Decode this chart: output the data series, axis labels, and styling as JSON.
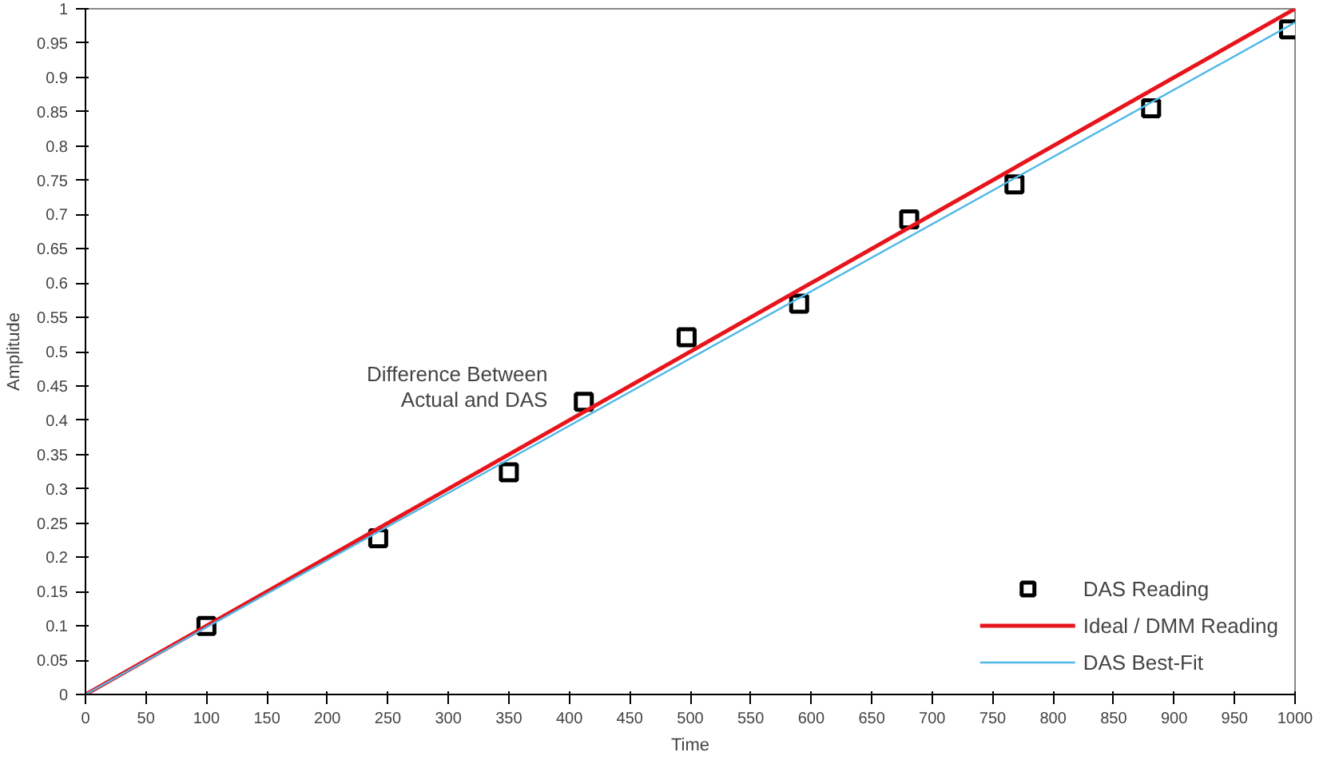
{
  "chart_data": {
    "type": "scatter",
    "xlabel": "Time",
    "ylabel": "Amplitude",
    "xlim": [
      0,
      1000
    ],
    "ylim": [
      0,
      1
    ],
    "xticks": [
      0,
      50,
      100,
      150,
      200,
      250,
      300,
      350,
      400,
      450,
      500,
      550,
      600,
      650,
      700,
      750,
      800,
      850,
      900,
      950,
      1000
    ],
    "yticks": [
      0,
      0.05,
      0.1,
      0.15,
      0.2,
      0.25,
      0.3,
      0.35,
      0.4,
      0.45,
      0.5,
      0.55,
      0.6,
      0.65,
      0.7,
      0.75,
      0.8,
      0.85,
      0.9,
      0.95,
      1
    ],
    "series": [
      {
        "name": "DAS Reading",
        "marker": "square",
        "color": "#000000",
        "x": [
          100,
          242,
          350,
          412,
          497,
          590,
          681,
          768,
          881,
          995
        ],
        "values": [
          0.1,
          0.228,
          0.324,
          0.427,
          0.521,
          0.57,
          0.693,
          0.744,
          0.855,
          0.97
        ]
      },
      {
        "name": "Ideal / DMM Reading",
        "type": "line",
        "color": "#e8141c",
        "x": [
          0,
          1000
        ],
        "values": [
          0,
          1
        ]
      },
      {
        "name": "DAS Best-Fit",
        "type": "line",
        "color": "#4fb8e8",
        "x": [
          0,
          1000
        ],
        "values": [
          0,
          0.98
        ]
      }
    ],
    "annotations": [
      {
        "text": "Difference Between\nActual and DAS",
        "x": 412,
        "y": 0.427
      }
    ],
    "legend": "bottom right",
    "grid": false
  }
}
